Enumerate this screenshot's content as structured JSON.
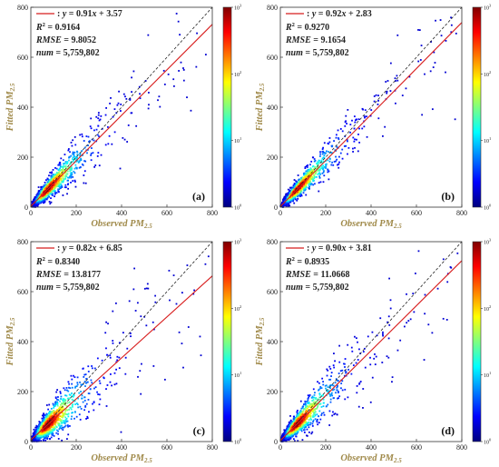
{
  "colors": {
    "fit_line": "#d81e1e",
    "identity_line": "#222222",
    "axis_title": "#a08a4a",
    "colormap": [
      "#00007f",
      "#0000ff",
      "#007fff",
      "#00ffff",
      "#7fff7f",
      "#ffff00",
      "#ff7f00",
      "#ff0000",
      "#7f0000"
    ]
  },
  "chart_data": [
    {
      "type": "scatter",
      "panel_label": "(a)",
      "xlabel": "Observed PM",
      "xlabel_sub": "2.5",
      "ylabel": "Fitted PM",
      "ylabel_sub": "2.5",
      "xlim": [
        0,
        800
      ],
      "ylim": [
        0,
        800
      ],
      "xticks": [
        "0",
        "200",
        "400",
        "600",
        "800"
      ],
      "yticks": [
        "0",
        "200",
        "400",
        "600",
        "800"
      ],
      "colorbar": {
        "scale": "log",
        "range": [
          1,
          1000
        ],
        "labels": [
          "10",
          "10",
          "10",
          "10"
        ],
        "exponents": [
          "0",
          "1",
          "2",
          "3"
        ]
      },
      "fit": {
        "slope": 0.91,
        "intercept": 3.57,
        "label_pre": ": ",
        "label_y": "y",
        "label_mid": " = 0.91",
        "label_x": "x",
        "label_post": " + 3.57"
      },
      "stats": {
        "r2_name": "R",
        "r2_sup": "2",
        "r2_value": " = 0.9164",
        "rmse_name": "RMSE",
        "rmse_value": " = 9.8052",
        "num_name": "num",
        "num_value": " = 5,759,802"
      },
      "spread": 0.22,
      "seed": 11
    },
    {
      "type": "scatter",
      "panel_label": "(b)",
      "xlabel": "Observed PM",
      "xlabel_sub": "2.5",
      "ylabel": "Fitted PM",
      "ylabel_sub": "2.5",
      "xlim": [
        0,
        800
      ],
      "ylim": [
        0,
        800
      ],
      "xticks": [
        "0",
        "200",
        "400",
        "600",
        "800"
      ],
      "yticks": [
        "0",
        "200",
        "400",
        "600",
        "800"
      ],
      "colorbar": {
        "scale": "log",
        "range": [
          1,
          1000
        ],
        "labels": [
          "10",
          "10",
          "10",
          "10"
        ],
        "exponents": [
          "0",
          "1",
          "2",
          "3"
        ]
      },
      "fit": {
        "slope": 0.92,
        "intercept": 2.83,
        "label_pre": ": ",
        "label_y": "y",
        "label_mid": " = 0.92",
        "label_x": "x",
        "label_post": " + 2.83"
      },
      "stats": {
        "r2_name": "R",
        "r2_sup": "2",
        "r2_value": " = 0.9270",
        "rmse_name": "RMSE",
        "rmse_value": " = 9.1654",
        "num_name": "num",
        "num_value": " = 5,759,802"
      },
      "spread": 0.2,
      "seed": 23
    },
    {
      "type": "scatter",
      "panel_label": "(c)",
      "xlabel": "Observed PM",
      "xlabel_sub": "2.5",
      "ylabel": "Fitted PM",
      "ylabel_sub": "2.5",
      "xlim": [
        0,
        800
      ],
      "ylim": [
        0,
        800
      ],
      "xticks": [
        "0",
        "200",
        "400",
        "600",
        "800"
      ],
      "yticks": [
        "0",
        "200",
        "400",
        "600",
        "800"
      ],
      "colorbar": {
        "scale": "log",
        "range": [
          1,
          1000
        ],
        "labels": [
          "10",
          "10",
          "10",
          "10"
        ],
        "exponents": [
          "0",
          "1",
          "2",
          "3"
        ]
      },
      "fit": {
        "slope": 0.82,
        "intercept": 6.85,
        "label_pre": ": ",
        "label_y": "y",
        "label_mid": " = 0.82",
        "label_x": "x",
        "label_post": " + 6.85"
      },
      "stats": {
        "r2_name": "R",
        "r2_sup": "2",
        "r2_value": " = 0.8340",
        "rmse_name": "RMSE",
        "rmse_value": " = 13.8177",
        "num_name": "num",
        "num_value": " = 5,759,802"
      },
      "spread": 0.32,
      "seed": 37
    },
    {
      "type": "scatter",
      "panel_label": "(d)",
      "xlabel": "Observed PM",
      "xlabel_sub": "2.5",
      "ylabel": "Fitted PM",
      "ylabel_sub": "2.5",
      "xlim": [
        0,
        800
      ],
      "ylim": [
        0,
        800
      ],
      "xticks": [
        "0",
        "200",
        "400",
        "600",
        "800"
      ],
      "yticks": [
        "0",
        "200",
        "400",
        "600",
        "800"
      ],
      "colorbar": {
        "scale": "log",
        "range": [
          1,
          1000
        ],
        "labels": [
          "10",
          "10",
          "10",
          "10"
        ],
        "exponents": [
          "0",
          "1",
          "2",
          "3"
        ]
      },
      "fit": {
        "slope": 0.9,
        "intercept": 3.81,
        "label_pre": ": ",
        "label_y": "y",
        "label_mid": " = 0.90",
        "label_x": "x",
        "label_post": " + 3.81"
      },
      "stats": {
        "r2_name": "R",
        "r2_sup": "2",
        "r2_value": " = 0.8935",
        "rmse_name": "RMSE",
        "rmse_value": " = 11.0668",
        "num_name": "num",
        "num_value": " = 5,759,802"
      },
      "spread": 0.26,
      "seed": 51
    }
  ]
}
